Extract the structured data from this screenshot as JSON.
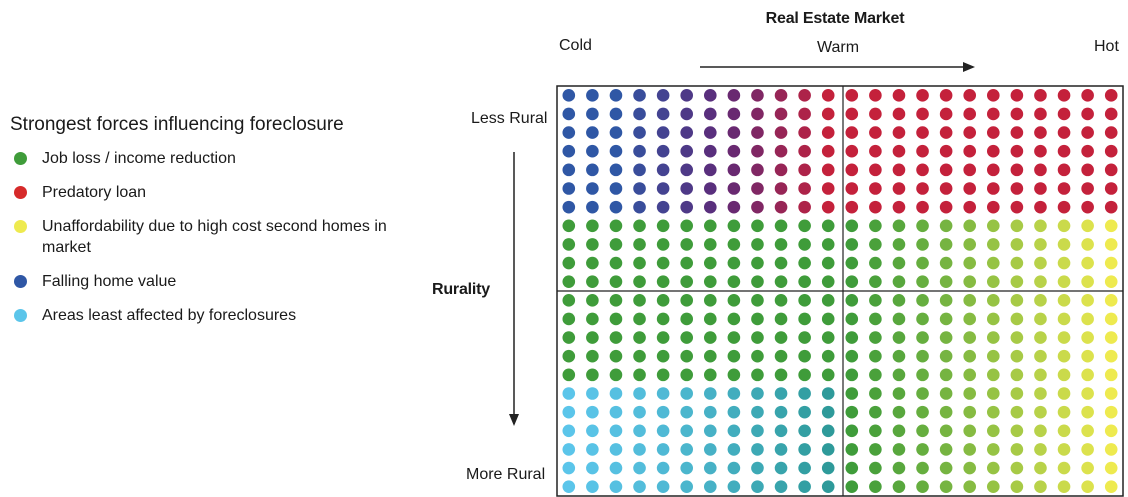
{
  "legend": {
    "title": "Strongest forces influencing foreclosure",
    "items": [
      {
        "label": "Job loss / income reduction",
        "color": "#3f9c3a"
      },
      {
        "label": "Predatory loan",
        "color": "#d62a2a"
      },
      {
        "label": "Unaffordability due to high cost second homes in market",
        "color": "#eeea4f"
      },
      {
        "label": "Falling home value",
        "color": "#2f57a5"
      },
      {
        "label": "Areas least affected by foreclosures",
        "color": "#5bc5ea"
      }
    ]
  },
  "axes": {
    "market_title": "Real Estate Market",
    "market_labels": {
      "cold": "Cold",
      "warm": "Warm",
      "hot": "Hot"
    },
    "rurality_title": "Rurality",
    "rurality_labels": {
      "top": "Less Rural",
      "bottom": "More Rural"
    }
  },
  "grid": {
    "columns": 24,
    "rows": 22,
    "quadrant_split": {
      "column": 12,
      "row": 11
    },
    "region_rows": {
      "top_band_rows": 7,
      "bottom_band_start_row": 16
    }
  },
  "colors": {
    "purple": "#5e2a78",
    "crimson": "#c4213b",
    "teal": "#2e9a9a",
    "border": "#222222",
    "arrow": "#222222"
  }
}
